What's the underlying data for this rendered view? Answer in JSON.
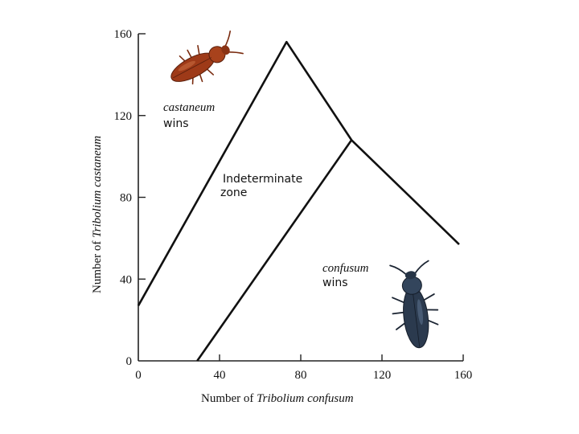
{
  "chart_data": {
    "type": "line",
    "title": "",
    "xlabel_prefix": "Number of ",
    "xlabel_species": "Tribolium confusum",
    "ylabel_prefix": "Number of ",
    "ylabel_species": "Tribolium castaneum",
    "xlim": [
      0,
      160
    ],
    "ylim": [
      0,
      160
    ],
    "x_ticks": [
      0,
      40,
      80,
      120,
      160
    ],
    "y_ticks": [
      0,
      40,
      80,
      120,
      160
    ],
    "grid": false,
    "series": [
      {
        "points": [
          [
            0,
            27
          ],
          [
            73,
            156
          ],
          [
            105,
            108
          ],
          [
            158,
            57
          ]
        ]
      },
      {
        "points": [
          [
            29,
            0
          ],
          [
            105,
            108
          ]
        ]
      }
    ],
    "annotations": {
      "castaneum_wins": {
        "species": "castaneum",
        "verb": "wins"
      },
      "indeterminate": {
        "line1": "Indeterminate",
        "line2": "zone"
      },
      "confusum_wins": {
        "species": "confusum",
        "verb": "wins"
      }
    }
  },
  "images": {
    "red_beetle": "red-flour-beetle",
    "dark_beetle": "confused-flour-beetle"
  }
}
